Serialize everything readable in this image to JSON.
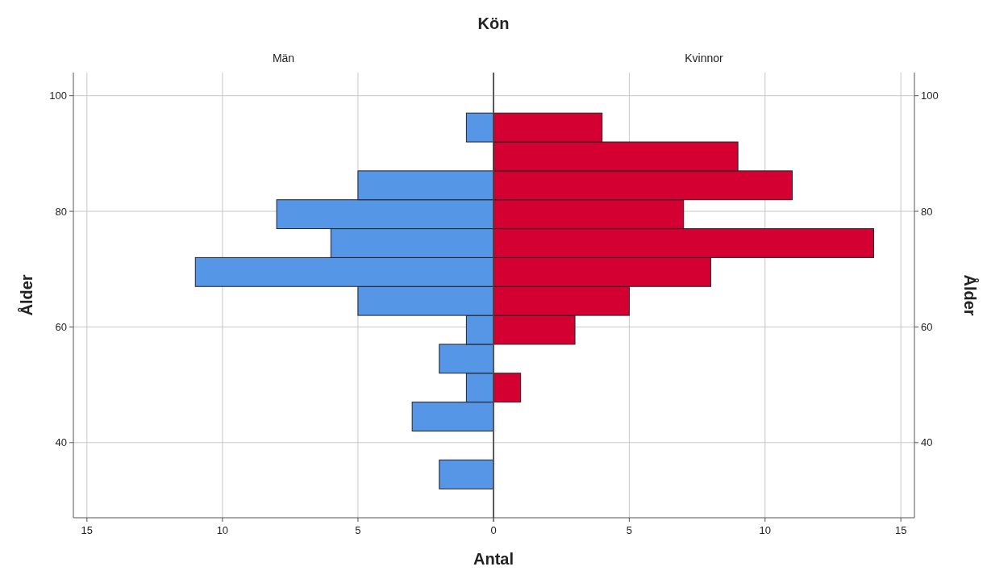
{
  "chart_data": [
    {
      "type": "histogram",
      "orientation": "horizontal",
      "title": "Kön",
      "subtitle": "Män",
      "xlabel": "Antal",
      "ylabel": "Ålder",
      "color": "#5596e6",
      "grid": true,
      "bins": [
        32,
        37,
        42,
        47,
        52,
        57,
        62,
        67,
        72,
        77,
        82,
        87,
        92,
        97
      ],
      "values": [
        2,
        0,
        3,
        1,
        2,
        1,
        5,
        11,
        6,
        8,
        5,
        0,
        1
      ],
      "xlim": [
        15.5,
        0
      ],
      "xticks": [
        15,
        10,
        5,
        {
          "value": 0,
          "label": null
        }
      ],
      "ylim": [
        27,
        104
      ],
      "yticks": [
        40,
        60,
        80,
        100
      ]
    },
    {
      "type": "histogram",
      "orientation": "horizontal",
      "subtitle": "Kvinnor",
      "ylabel": "Ålder",
      "color": "#d50032",
      "grid": true,
      "bins": [
        32,
        37,
        42,
        47,
        52,
        57,
        62,
        67,
        72,
        77,
        82,
        87,
        92,
        97
      ],
      "values": [
        0,
        0,
        0,
        1,
        0,
        3,
        5,
        8,
        14,
        7,
        11,
        9,
        4
      ],
      "xlim": [
        0,
        15.5
      ],
      "xticks": [
        0,
        5,
        10,
        15
      ],
      "ylim": [
        27,
        104
      ],
      "yticks": [
        40,
        60,
        80,
        100
      ]
    }
  ]
}
